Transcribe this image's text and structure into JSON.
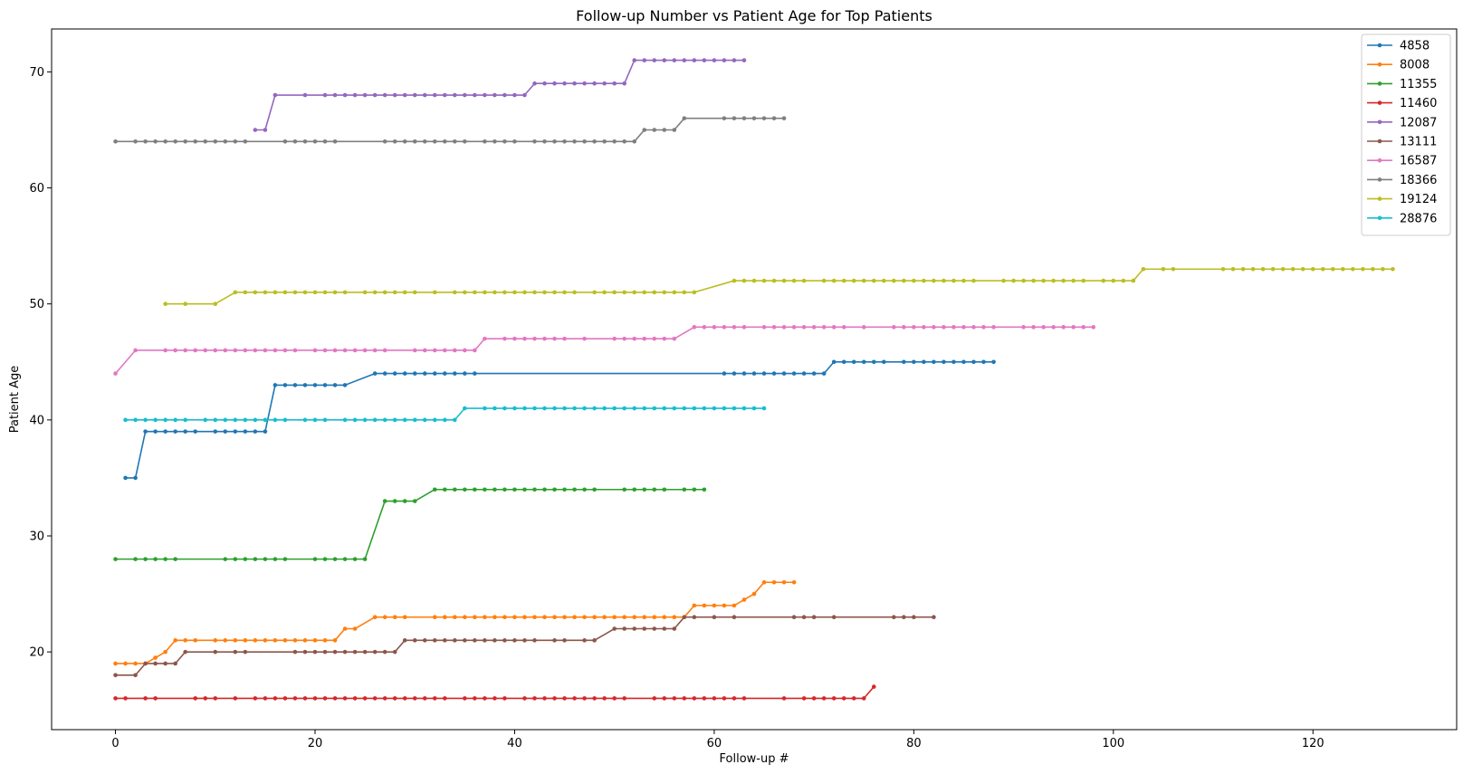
{
  "chart_data": {
    "type": "line",
    "title": "Follow-up Number vs Patient Age for Top Patients",
    "xlabel": "Follow-up #",
    "ylabel": "Patient Age",
    "xlim": [
      -6.4,
      134.4
    ],
    "ylim": [
      13.3,
      73.7
    ],
    "xticks": [
      0,
      20,
      40,
      60,
      80,
      100,
      120
    ],
    "yticks": [
      20,
      30,
      40,
      50,
      60,
      70
    ],
    "grid": false,
    "legend_position": "top-right",
    "series": [
      {
        "name": "4858",
        "color": "#1f77b4",
        "x": [
          1,
          2,
          3,
          4,
          5,
          6,
          7,
          8,
          10,
          11,
          12,
          13,
          14,
          15,
          16,
          17,
          18,
          19,
          20,
          21,
          22,
          23,
          26,
          27,
          28,
          29,
          30,
          31,
          32,
          33,
          34,
          35,
          36,
          61,
          62,
          63,
          64,
          65,
          66,
          67,
          68,
          69,
          70,
          71,
          72,
          73,
          74,
          75,
          76,
          77,
          79,
          80,
          81,
          82,
          83,
          84,
          85,
          86,
          87,
          88
        ],
        "y": [
          35,
          35,
          39,
          39,
          39,
          39,
          39,
          39,
          39,
          39,
          39,
          39,
          39,
          39,
          43,
          43,
          43,
          43,
          43,
          43,
          43,
          43,
          44,
          44,
          44,
          44,
          44,
          44,
          44,
          44,
          44,
          44,
          44,
          44,
          44,
          44,
          44,
          44,
          44,
          44,
          44,
          44,
          44,
          44,
          45,
          45,
          45,
          45,
          45,
          45,
          45,
          45,
          45,
          45,
          45,
          45,
          45,
          45,
          45,
          45
        ]
      },
      {
        "name": "8008",
        "color": "#ff7f0e",
        "x": [
          0,
          1,
          2,
          3,
          4,
          5,
          6,
          7,
          8,
          10,
          11,
          12,
          13,
          14,
          15,
          16,
          17,
          18,
          19,
          20,
          21,
          22,
          23,
          24,
          26,
          27,
          28,
          29,
          32,
          33,
          34,
          35,
          36,
          37,
          38,
          39,
          40,
          41,
          42,
          43,
          44,
          45,
          46,
          47,
          48,
          49,
          50,
          51,
          52,
          53,
          54,
          55,
          56,
          57,
          58,
          59,
          60,
          61,
          62,
          63,
          64,
          65,
          66,
          67,
          68
        ],
        "y": [
          19,
          19,
          19,
          19,
          19.5,
          20,
          21,
          21,
          21,
          21,
          21,
          21,
          21,
          21,
          21,
          21,
          21,
          21,
          21,
          21,
          21,
          21,
          22,
          22,
          23,
          23,
          23,
          23,
          23,
          23,
          23,
          23,
          23,
          23,
          23,
          23,
          23,
          23,
          23,
          23,
          23,
          23,
          23,
          23,
          23,
          23,
          23,
          23,
          23,
          23,
          23,
          23,
          23,
          23,
          24,
          24,
          24,
          24,
          24,
          24.5,
          25,
          26,
          26,
          26,
          26
        ]
      },
      {
        "name": "11355",
        "color": "#2ca02c",
        "x": [
          0,
          2,
          3,
          4,
          5,
          6,
          11,
          12,
          13,
          14,
          15,
          16,
          17,
          20,
          21,
          22,
          23,
          24,
          25,
          27,
          28,
          29,
          30,
          32,
          33,
          34,
          35,
          36,
          37,
          38,
          39,
          40,
          41,
          42,
          43,
          44,
          45,
          46,
          47,
          48,
          51,
          52,
          53,
          54,
          55,
          57,
          58,
          59
        ],
        "y": [
          28,
          28,
          28,
          28,
          28,
          28,
          28,
          28,
          28,
          28,
          28,
          28,
          28,
          28,
          28,
          28,
          28,
          28,
          28,
          33,
          33,
          33,
          33,
          34,
          34,
          34,
          34,
          34,
          34,
          34,
          34,
          34,
          34,
          34,
          34,
          34,
          34,
          34,
          34,
          34,
          34,
          34,
          34,
          34,
          34,
          34,
          34,
          34
        ]
      },
      {
        "name": "11460",
        "color": "#d62728",
        "x": [
          0,
          1,
          3,
          4,
          8,
          9,
          10,
          12,
          14,
          15,
          16,
          17,
          18,
          19,
          20,
          21,
          22,
          23,
          24,
          25,
          26,
          27,
          28,
          29,
          30,
          31,
          32,
          33,
          35,
          36,
          37,
          38,
          39,
          41,
          42,
          43,
          44,
          45,
          46,
          47,
          48,
          49,
          50,
          51,
          54,
          55,
          56,
          57,
          58,
          59,
          60,
          61,
          62,
          63,
          67,
          69,
          70,
          71,
          72,
          73,
          74,
          75,
          76
        ],
        "y": [
          16,
          16,
          16,
          16,
          16,
          16,
          16,
          16,
          16,
          16,
          16,
          16,
          16,
          16,
          16,
          16,
          16,
          16,
          16,
          16,
          16,
          16,
          16,
          16,
          16,
          16,
          16,
          16,
          16,
          16,
          16,
          16,
          16,
          16,
          16,
          16,
          16,
          16,
          16,
          16,
          16,
          16,
          16,
          16,
          16,
          16,
          16,
          16,
          16,
          16,
          16,
          16,
          16,
          16,
          16,
          16,
          16,
          16,
          16,
          16,
          16,
          16,
          17
        ]
      },
      {
        "name": "12087",
        "color": "#9467bd",
        "x": [
          14,
          15,
          16,
          19,
          21,
          22,
          23,
          24,
          25,
          26,
          27,
          28,
          29,
          30,
          31,
          32,
          33,
          34,
          35,
          36,
          37,
          38,
          39,
          40,
          41,
          42,
          43,
          44,
          45,
          46,
          47,
          48,
          49,
          50,
          51,
          52,
          53,
          54,
          55,
          56,
          57,
          58,
          59,
          60,
          61,
          62,
          63
        ],
        "y": [
          65,
          65,
          68,
          68,
          68,
          68,
          68,
          68,
          68,
          68,
          68,
          68,
          68,
          68,
          68,
          68,
          68,
          68,
          68,
          68,
          68,
          68,
          68,
          68,
          68,
          69,
          69,
          69,
          69,
          69,
          69,
          69,
          69,
          69,
          69,
          71,
          71,
          71,
          71,
          71,
          71,
          71,
          71,
          71,
          71,
          71,
          71
        ]
      },
      {
        "name": "13111",
        "color": "#8c564b",
        "x": [
          0,
          2,
          3,
          4,
          5,
          6,
          7,
          10,
          12,
          13,
          18,
          19,
          20,
          21,
          22,
          23,
          24,
          25,
          26,
          27,
          28,
          29,
          30,
          31,
          32,
          33,
          34,
          35,
          36,
          37,
          38,
          39,
          40,
          41,
          42,
          44,
          45,
          47,
          48,
          50,
          51,
          52,
          53,
          54,
          55,
          56,
          57,
          58,
          60,
          62,
          68,
          69,
          70,
          72,
          78,
          79,
          80,
          82
        ],
        "y": [
          18,
          18,
          19,
          19,
          19,
          19,
          20,
          20,
          20,
          20,
          20,
          20,
          20,
          20,
          20,
          20,
          20,
          20,
          20,
          20,
          20,
          21,
          21,
          21,
          21,
          21,
          21,
          21,
          21,
          21,
          21,
          21,
          21,
          21,
          21,
          21,
          21,
          21,
          21,
          22,
          22,
          22,
          22,
          22,
          22,
          22,
          23,
          23,
          23,
          23,
          23,
          23,
          23,
          23,
          23,
          23,
          23,
          23
        ]
      },
      {
        "name": "16587",
        "color": "#e377c2",
        "x": [
          0,
          2,
          5,
          6,
          7,
          8,
          9,
          10,
          11,
          12,
          13,
          14,
          15,
          16,
          17,
          18,
          20,
          21,
          22,
          23,
          24,
          25,
          26,
          27,
          30,
          31,
          32,
          33,
          34,
          35,
          36,
          37,
          39,
          40,
          41,
          42,
          43,
          44,
          45,
          47,
          50,
          51,
          52,
          53,
          54,
          55,
          56,
          58,
          59,
          60,
          61,
          62,
          63,
          65,
          66,
          67,
          68,
          69,
          70,
          71,
          72,
          73,
          75,
          78,
          79,
          80,
          81,
          82,
          83,
          84,
          85,
          86,
          87,
          88,
          91,
          92,
          93,
          94,
          95,
          96,
          97,
          98
        ],
        "y": [
          44,
          46,
          46,
          46,
          46,
          46,
          46,
          46,
          46,
          46,
          46,
          46,
          46,
          46,
          46,
          46,
          46,
          46,
          46,
          46,
          46,
          46,
          46,
          46,
          46,
          46,
          46,
          46,
          46,
          46,
          46,
          47,
          47,
          47,
          47,
          47,
          47,
          47,
          47,
          47,
          47,
          47,
          47,
          47,
          47,
          47,
          47,
          48,
          48,
          48,
          48,
          48,
          48,
          48,
          48,
          48,
          48,
          48,
          48,
          48,
          48,
          48,
          48,
          48,
          48,
          48,
          48,
          48,
          48,
          48,
          48,
          48,
          48,
          48,
          48,
          48,
          48,
          48,
          48,
          48,
          48,
          48
        ]
      },
      {
        "name": "18366",
        "color": "#7f7f7f",
        "x": [
          0,
          2,
          3,
          4,
          5,
          6,
          7,
          8,
          9,
          10,
          11,
          12,
          13,
          17,
          18,
          19,
          20,
          21,
          22,
          27,
          28,
          29,
          30,
          31,
          32,
          33,
          34,
          35,
          37,
          38,
          39,
          40,
          42,
          43,
          44,
          45,
          46,
          47,
          48,
          49,
          50,
          51,
          52,
          53,
          54,
          55,
          56,
          57,
          61,
          62,
          63,
          64,
          65,
          66,
          67
        ],
        "y": [
          64,
          64,
          64,
          64,
          64,
          64,
          64,
          64,
          64,
          64,
          64,
          64,
          64,
          64,
          64,
          64,
          64,
          64,
          64,
          64,
          64,
          64,
          64,
          64,
          64,
          64,
          64,
          64,
          64,
          64,
          64,
          64,
          64,
          64,
          64,
          64,
          64,
          64,
          64,
          64,
          64,
          64,
          64,
          65,
          65,
          65,
          65,
          66,
          66,
          66,
          66,
          66,
          66,
          66,
          66
        ]
      },
      {
        "name": "19124",
        "color": "#bcbd22",
        "x": [
          5,
          7,
          10,
          12,
          13,
          14,
          15,
          16,
          17,
          18,
          19,
          20,
          21,
          22,
          23,
          25,
          26,
          27,
          28,
          29,
          30,
          32,
          34,
          35,
          36,
          37,
          38,
          39,
          40,
          41,
          42,
          43,
          44,
          45,
          46,
          48,
          49,
          50,
          51,
          52,
          53,
          54,
          55,
          56,
          57,
          58,
          62,
          63,
          64,
          65,
          66,
          67,
          68,
          69,
          71,
          72,
          73,
          74,
          75,
          76,
          77,
          78,
          79,
          80,
          81,
          82,
          83,
          84,
          85,
          86,
          89,
          90,
          91,
          92,
          93,
          94,
          95,
          96,
          97,
          99,
          100,
          101,
          102,
          103,
          105,
          106,
          111,
          112,
          113,
          114,
          115,
          116,
          117,
          118,
          119,
          120,
          121,
          122,
          123,
          124,
          125,
          126,
          127,
          128
        ],
        "y": [
          50,
          50,
          50,
          51,
          51,
          51,
          51,
          51,
          51,
          51,
          51,
          51,
          51,
          51,
          51,
          51,
          51,
          51,
          51,
          51,
          51,
          51,
          51,
          51,
          51,
          51,
          51,
          51,
          51,
          51,
          51,
          51,
          51,
          51,
          51,
          51,
          51,
          51,
          51,
          51,
          51,
          51,
          51,
          51,
          51,
          51,
          52,
          52,
          52,
          52,
          52,
          52,
          52,
          52,
          52,
          52,
          52,
          52,
          52,
          52,
          52,
          52,
          52,
          52,
          52,
          52,
          52,
          52,
          52,
          52,
          52,
          52,
          52,
          52,
          52,
          52,
          52,
          52,
          52,
          52,
          52,
          52,
          52,
          53,
          53,
          53,
          53,
          53,
          53,
          53,
          53,
          53,
          53,
          53,
          53,
          53,
          53,
          53,
          53,
          53,
          53,
          53,
          53,
          53
        ]
      },
      {
        "name": "28876",
        "color": "#17becf",
        "x": [
          1,
          2,
          3,
          4,
          5,
          6,
          7,
          9,
          10,
          11,
          12,
          13,
          14,
          15,
          16,
          17,
          19,
          20,
          21,
          23,
          24,
          25,
          26,
          27,
          28,
          29,
          30,
          31,
          32,
          33,
          34,
          35,
          37,
          38,
          39,
          40,
          41,
          42,
          43,
          44,
          45,
          46,
          47,
          48,
          49,
          50,
          51,
          52,
          53,
          54,
          55,
          56,
          57,
          58,
          59,
          60,
          61,
          62,
          63,
          64,
          65
        ],
        "y": [
          40,
          40,
          40,
          40,
          40,
          40,
          40,
          40,
          40,
          40,
          40,
          40,
          40,
          40,
          40,
          40,
          40,
          40,
          40,
          40,
          40,
          40,
          40,
          40,
          40,
          40,
          40,
          40,
          40,
          40,
          40,
          41,
          41,
          41,
          41,
          41,
          41,
          41,
          41,
          41,
          41,
          41,
          41,
          41,
          41,
          41,
          41,
          41,
          41,
          41,
          41,
          41,
          41,
          41,
          41,
          41,
          41,
          41,
          41,
          41,
          41
        ]
      }
    ]
  }
}
